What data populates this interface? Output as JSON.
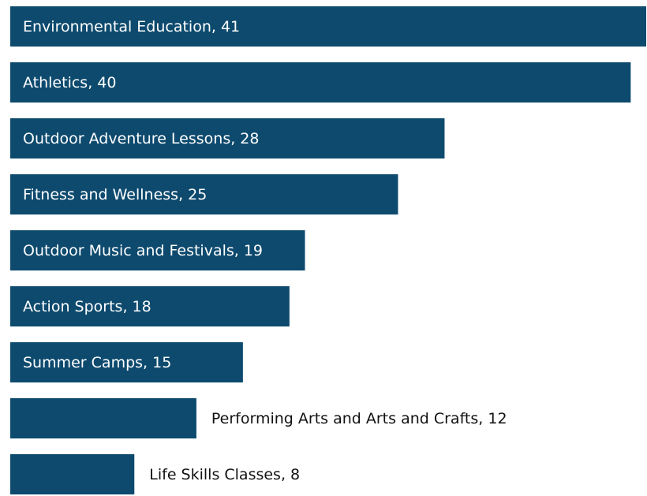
{
  "chart_data": {
    "type": "bar",
    "orientation": "horizontal",
    "categories": [
      "Environmental Education, 41",
      "Athletics, 40",
      "Outdoor Adventure Lessons, 28",
      "Fitness and Wellness, 25",
      "Outdoor Music and Festivals, 19",
      "Action Sports, 18",
      "Summer Camps, 15",
      "Performing Arts and Arts and Crafts, 12",
      "Life Skills Classes, 8"
    ],
    "values": [
      41,
      40,
      28,
      25,
      19,
      18,
      15,
      12,
      8
    ],
    "color": "#0d4a6e",
    "xlim": [
      0,
      41
    ]
  }
}
